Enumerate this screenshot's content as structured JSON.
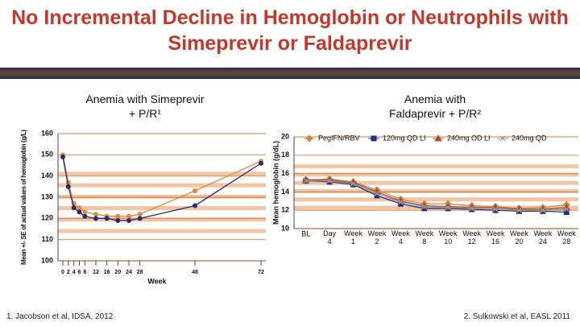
{
  "title": "No Incremental Decline in Hemoglobin or Neutrophils with Simeprevir or Faldaprevir",
  "footnotes": [
    "1. Jacobson et al, IDSA, 2012",
    "2. Sulkowski et al, EASL 2011"
  ],
  "chart_data": [
    {
      "type": "line",
      "subtitle": "Anemia with Simeprevir + P/R¹",
      "y_label": "Mean +/- SE of actual values of hemoglobin (g/L)",
      "x_label": "Week",
      "x": [
        0,
        2,
        4,
        6,
        8,
        12,
        16,
        20,
        24,
        28,
        48,
        72
      ],
      "xlim": [
        0,
        72
      ],
      "xticks": [
        0,
        2,
        4,
        6,
        8,
        12,
        16,
        20,
        24,
        28,
        48,
        72
      ],
      "ylim": [
        100,
        160
      ],
      "yticks": [
        100,
        110,
        120,
        130,
        140,
        150,
        160
      ],
      "series": [
        {
          "color": "#e0893a",
          "values": [
            150,
            137,
            127,
            125,
            123,
            122,
            121,
            121,
            121,
            122,
            133,
            147
          ]
        },
        {
          "color": "#2a2a6a",
          "values": [
            149,
            135,
            125,
            123,
            121,
            120,
            120,
            119,
            119,
            120,
            126,
            146
          ]
        }
      ]
    },
    {
      "type": "line",
      "subtitle": "Anemia with Faldaprevir + P/R²",
      "y_label": "Mean hemoglobin (g/dL)",
      "categories": [
        "BL",
        "Day 4",
        "Week 1",
        "Week 2",
        "Week 4",
        "Week 8",
        "Week 10",
        "Week 12",
        "Week 16",
        "Week 20",
        "Week 24",
        "Week 28"
      ],
      "ylim": [
        10,
        20
      ],
      "yticks": [
        10,
        12,
        14,
        16,
        18,
        20
      ],
      "series": [
        {
          "name": "PegIFN/RBV",
          "color": "#d08a4a",
          "marker": "diamond",
          "values": [
            15.3,
            15.4,
            15.1,
            14.2,
            13.2,
            12.7,
            12.7,
            12.5,
            12.4,
            12.2,
            12.3,
            12.6
          ]
        },
        {
          "name": "120mg QD LI",
          "color": "#1f2f8a",
          "marker": "square",
          "values": [
            15.2,
            15.1,
            14.8,
            13.6,
            12.7,
            12.2,
            12.2,
            12.1,
            12.0,
            11.9,
            11.9,
            11.8
          ]
        },
        {
          "name": "240mg OD LI",
          "color": "#a0522d",
          "marker": "triangle",
          "values": [
            15.3,
            15.3,
            15.0,
            14.0,
            13.0,
            12.5,
            12.4,
            12.3,
            12.3,
            12.1,
            12.1,
            12.3
          ]
        },
        {
          "name": "240mg QD",
          "color": "#999999",
          "marker": "x",
          "values": [
            15.2,
            15.2,
            14.9,
            13.8,
            12.9,
            12.4,
            12.3,
            12.2,
            12.1,
            12.0,
            12.0,
            12.1
          ]
        }
      ]
    }
  ]
}
